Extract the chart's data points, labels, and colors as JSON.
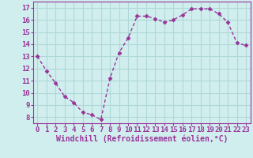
{
  "x": [
    0,
    1,
    2,
    3,
    4,
    5,
    6,
    7,
    8,
    9,
    10,
    11,
    12,
    13,
    14,
    15,
    16,
    17,
    18,
    19,
    20,
    21,
    22,
    23
  ],
  "y": [
    13.0,
    11.8,
    10.8,
    9.7,
    9.2,
    8.4,
    8.2,
    7.8,
    11.2,
    13.3,
    14.5,
    16.3,
    16.3,
    16.1,
    15.8,
    16.0,
    16.4,
    16.9,
    16.9,
    16.9,
    16.5,
    15.8,
    14.1,
    13.9
  ],
  "line_color": "#993399",
  "marker": "D",
  "markersize": 2.5,
  "linewidth": 1.0,
  "bg_color": "#d0eeee",
  "grid_color": "#b0d8d8",
  "xlabel": "Windchill (Refroidissement éolien,°C)",
  "xlabel_fontsize": 7,
  "tick_fontsize": 6.5,
  "ylim": [
    7.5,
    17.5
  ],
  "xlim": [
    -0.5,
    23.5
  ],
  "yticks": [
    8,
    9,
    10,
    11,
    12,
    13,
    14,
    15,
    16,
    17
  ],
  "xticks": [
    0,
    1,
    2,
    3,
    4,
    5,
    6,
    7,
    8,
    9,
    10,
    11,
    12,
    13,
    14,
    15,
    16,
    17,
    18,
    19,
    20,
    21,
    22,
    23
  ]
}
